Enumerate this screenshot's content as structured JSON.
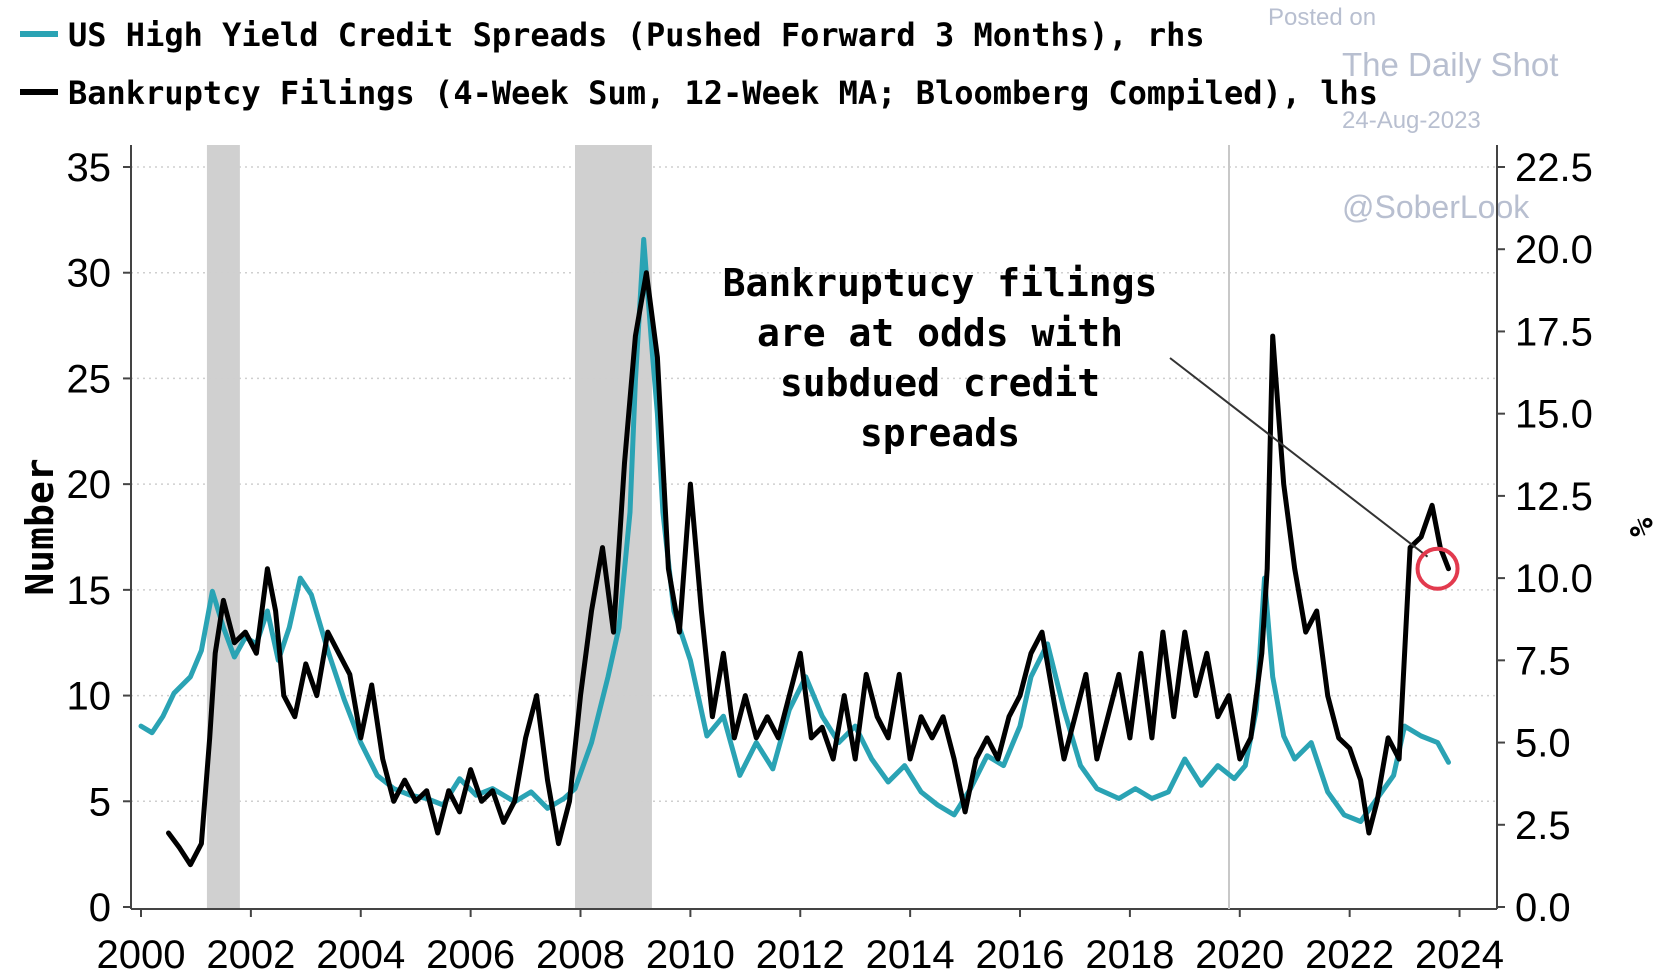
{
  "chart_data": {
    "type": "line",
    "legend": [
      {
        "label": "US High Yield Credit Spreads (Pushed Forward 3 Months), rhs",
        "color": "#2aa3b4",
        "axis": "right"
      },
      {
        "label": "Bankruptcy Filings (4-Week Sum, 12-Week MA; Bloomberg Compiled), lhs",
        "color": "#000000",
        "axis": "left"
      }
    ],
    "left_axis": {
      "label": "Number",
      "min": 0,
      "max": 35,
      "ticks": [
        "0",
        "5",
        "10",
        "15",
        "20",
        "25",
        "30",
        "35"
      ],
      "values": [
        0,
        5,
        10,
        15,
        20,
        25,
        30,
        35
      ]
    },
    "right_axis": {
      "label": "%",
      "min": 0,
      "max": 22.5,
      "ticks": [
        "0.0",
        "2.5",
        "5.0",
        "7.5",
        "10.0",
        "12.5",
        "15.0",
        "17.5",
        "20.0",
        "22.5"
      ],
      "values": [
        0,
        2.5,
        5,
        7.5,
        10,
        12.5,
        15,
        17.5,
        20,
        22.5
      ]
    },
    "x_axis": {
      "min": 2000,
      "max": 2024.5,
      "ticks": [
        "2000",
        "2002",
        "2004",
        "2006",
        "2008",
        "2010",
        "2012",
        "2014",
        "2016",
        "2018",
        "2020",
        "2022",
        "2024"
      ],
      "values": [
        2000,
        2002,
        2004,
        2006,
        2008,
        2010,
        2012,
        2014,
        2016,
        2018,
        2020,
        2022,
        2024
      ]
    },
    "recessions": [
      [
        2001.2,
        2001.8
      ],
      [
        2007.9,
        2009.3
      ]
    ],
    "annotation": {
      "lines": [
        "Bankruptucy filings",
        "are at odds with",
        "subdued credit",
        "spreads"
      ],
      "target": [
        2023.6,
        16
      ]
    },
    "series": [
      {
        "name": "US High Yield Credit Spreads (Pushed Forward 3 Months), rhs",
        "axis": "right",
        "color": "#2aa3b4",
        "x": [
          2000.0,
          2000.2,
          2000.4,
          2000.6,
          2000.9,
          2001.1,
          2001.3,
          2001.5,
          2001.7,
          2001.9,
          2002.1,
          2002.3,
          2002.5,
          2002.7,
          2002.9,
          2003.1,
          2003.4,
          2003.7,
          2004.0,
          2004.3,
          2004.6,
          2004.9,
          2005.2,
          2005.5,
          2005.8,
          2006.1,
          2006.4,
          2006.8,
          2007.1,
          2007.4,
          2007.7,
          2007.9,
          2008.2,
          2008.5,
          2008.7,
          2008.9,
          2009.0,
          2009.15,
          2009.3,
          2009.4,
          2009.5,
          2009.7,
          2010.0,
          2010.3,
          2010.6,
          2010.9,
          2011.2,
          2011.5,
          2011.8,
          2012.1,
          2012.4,
          2012.7,
          2013.0,
          2013.3,
          2013.6,
          2013.9,
          2014.2,
          2014.5,
          2014.8,
          2015.1,
          2015.4,
          2015.7,
          2016.0,
          2016.2,
          2016.5,
          2016.8,
          2017.1,
          2017.4,
          2017.8,
          2018.1,
          2018.4,
          2018.7,
          2019.0,
          2019.3,
          2019.6,
          2019.9,
          2020.1,
          2020.3,
          2020.45,
          2020.6,
          2020.8,
          2021.0,
          2021.3,
          2021.6,
          2021.9,
          2022.2,
          2022.5,
          2022.8,
          2023.0,
          2023.3,
          2023.6,
          2023.8
        ],
        "values": [
          5.5,
          5.3,
          5.8,
          6.5,
          7.0,
          7.8,
          9.6,
          8.5,
          7.6,
          8.2,
          8.0,
          9.0,
          7.5,
          8.5,
          10.0,
          9.5,
          7.8,
          6.3,
          5.0,
          4.0,
          3.6,
          3.4,
          3.3,
          3.1,
          3.9,
          3.4,
          3.6,
          3.2,
          3.5,
          3.0,
          3.3,
          3.6,
          5.0,
          7.0,
          8.5,
          12.0,
          16.0,
          20.3,
          17.0,
          15.0,
          12.0,
          9.0,
          7.5,
          5.2,
          5.8,
          4.0,
          5.0,
          4.2,
          6.0,
          7.0,
          5.8,
          5.0,
          5.5,
          4.5,
          3.8,
          4.3,
          3.5,
          3.1,
          2.8,
          3.6,
          4.6,
          4.3,
          5.5,
          7.0,
          8.0,
          6.0,
          4.3,
          3.6,
          3.3,
          3.6,
          3.3,
          3.5,
          4.5,
          3.7,
          4.3,
          3.9,
          4.3,
          6.0,
          10.0,
          7.0,
          5.2,
          4.5,
          5.0,
          3.5,
          2.8,
          2.6,
          3.3,
          4.0,
          5.5,
          5.2,
          5.0,
          4.4
        ]
      },
      {
        "name": "Bankruptcy Filings (4-Week Sum, 12-Week MA; Bloomberg Compiled), lhs",
        "axis": "left",
        "color": "#000000",
        "x": [
          2000.5,
          2000.7,
          2000.9,
          2001.1,
          2001.25,
          2001.35,
          2001.5,
          2001.7,
          2001.9,
          2002.1,
          2002.3,
          2002.45,
          2002.6,
          2002.8,
          2003.0,
          2003.2,
          2003.4,
          2003.6,
          2003.8,
          2004.0,
          2004.2,
          2004.4,
          2004.6,
          2004.8,
          2005.0,
          2005.2,
          2005.4,
          2005.6,
          2005.8,
          2006.0,
          2006.2,
          2006.4,
          2006.6,
          2006.8,
          2007.0,
          2007.2,
          2007.4,
          2007.6,
          2007.8,
          2008.0,
          2008.2,
          2008.4,
          2008.6,
          2008.8,
          2009.0,
          2009.2,
          2009.4,
          2009.6,
          2009.8,
          2010.0,
          2010.2,
          2010.4,
          2010.6,
          2010.8,
          2011.0,
          2011.2,
          2011.4,
          2011.6,
          2011.8,
          2012.0,
          2012.2,
          2012.4,
          2012.6,
          2012.8,
          2013.0,
          2013.2,
          2013.4,
          2013.6,
          2013.8,
          2014.0,
          2014.2,
          2014.4,
          2014.6,
          2014.8,
          2015.0,
          2015.2,
          2015.4,
          2015.6,
          2015.8,
          2016.0,
          2016.2,
          2016.4,
          2016.6,
          2016.8,
          2017.0,
          2017.2,
          2017.4,
          2017.6,
          2017.8,
          2018.0,
          2018.2,
          2018.4,
          2018.6,
          2018.8,
          2019.0,
          2019.2,
          2019.4,
          2019.6,
          2019.8,
          2020.0,
          2020.2,
          2020.4,
          2020.5,
          2020.6,
          2020.8,
          2021.0,
          2021.2,
          2021.4,
          2021.6,
          2021.8,
          2022.0,
          2022.2,
          2022.35,
          2022.5,
          2022.7,
          2022.9,
          2023.1,
          2023.3,
          2023.5,
          2023.65,
          2023.8
        ],
        "values": [
          3.5,
          2.8,
          2.0,
          3.0,
          8.0,
          12.0,
          14.5,
          12.5,
          13.0,
          12.0,
          16.0,
          14.0,
          10.0,
          9.0,
          11.5,
          10.0,
          13.0,
          12.0,
          11.0,
          8.0,
          10.5,
          7.0,
          5.0,
          6.0,
          5.0,
          5.5,
          3.5,
          5.5,
          4.5,
          6.5,
          5.0,
          5.5,
          4.0,
          5.0,
          8.0,
          10.0,
          6.0,
          3.0,
          5.0,
          10.0,
          14.0,
          17.0,
          13.0,
          21.0,
          27.0,
          30.0,
          26.0,
          16.0,
          13.0,
          20.0,
          14.0,
          9.0,
          12.0,
          8.0,
          10.0,
          8.0,
          9.0,
          8.0,
          10.0,
          12.0,
          8.0,
          8.5,
          7.0,
          10.0,
          7.0,
          11.0,
          9.0,
          8.0,
          11.0,
          7.0,
          9.0,
          8.0,
          9.0,
          7.0,
          4.5,
          7.0,
          8.0,
          7.0,
          9.0,
          10.0,
          12.0,
          13.0,
          10.0,
          7.0,
          9.0,
          11.0,
          7.0,
          9.0,
          11.0,
          8.0,
          12.0,
          8.0,
          13.0,
          9.0,
          13.0,
          10.0,
          12.0,
          9.0,
          10.0,
          7.0,
          8.0,
          12.0,
          16.0,
          27.0,
          20.0,
          16.0,
          13.0,
          14.0,
          10.0,
          8.0,
          7.5,
          6.0,
          3.5,
          5.0,
          8.0,
          7.0,
          17.0,
          17.5,
          19.0,
          17.0,
          16.0
        ]
      }
    ]
  },
  "watermark": {
    "line1": "Posted on",
    "line2": "The Daily Shot",
    "line3": "24-Aug-2023",
    "line4": "@SoberLook"
  },
  "colors": {
    "accent": "#2aa3b4",
    "recession": "#d0d0d0",
    "highlight_circle": "#e23a4e"
  }
}
